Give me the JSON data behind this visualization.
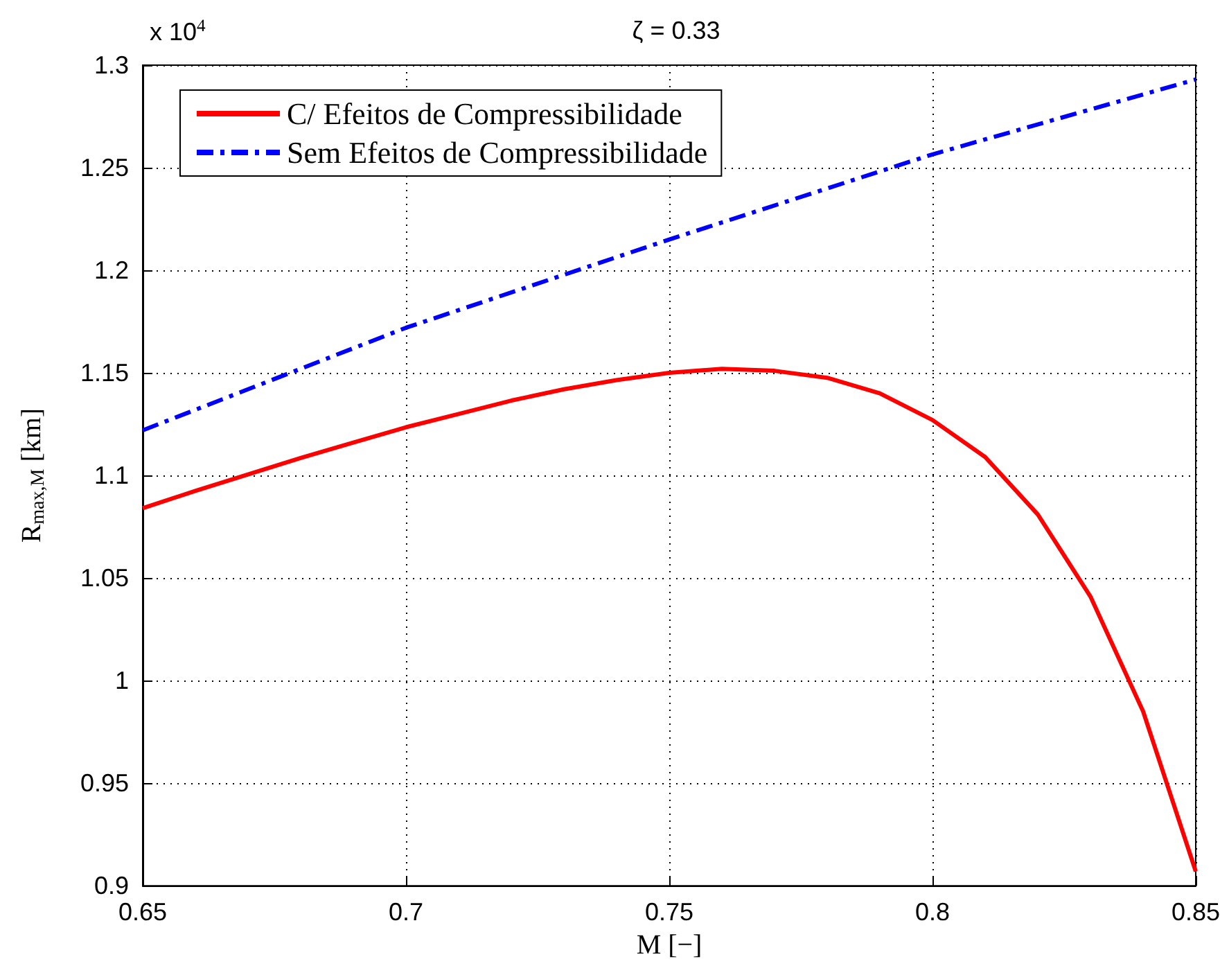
{
  "chart_data": {
    "type": "line",
    "title": "ζ = 0.33",
    "xlabel": "M [−]",
    "ylabel": "R$_{max,M}$ [km]",
    "annotations": [
      "x 10$^{4}$"
    ],
    "x": [
      0.65,
      0.66,
      0.67,
      0.68,
      0.69,
      0.7,
      0.71,
      0.72,
      0.73,
      0.74,
      0.75,
      0.76,
      0.77,
      0.78,
      0.79,
      0.8,
      0.81,
      0.82,
      0.83,
      0.84,
      0.85
    ],
    "series": [
      {
        "name": "C/ Efeitos de Compressibilidade",
        "color": "#ff0000",
        "line_style": "solid",
        "values": [
          1.084,
          1.0925,
          1.1005,
          1.1085,
          1.116,
          1.1235,
          1.13,
          1.1365,
          1.142,
          1.1465,
          1.15,
          1.152,
          1.151,
          1.1476,
          1.14,
          1.127,
          1.109,
          1.081,
          1.041,
          0.985,
          0.907
        ]
      },
      {
        "name": "Sem Efeitos de Compressibilidade",
        "color": "#0000ff",
        "line_style": "dashdot",
        "x": [
          0.65,
          0.7,
          0.75,
          0.8,
          0.85
        ],
        "values": [
          1.122,
          1.172,
          1.215,
          1.2565,
          1.293
        ]
      }
    ],
    "xlim": [
      0.65,
      0.85
    ],
    "xticks": [
      0.65,
      0.7,
      0.75,
      0.8,
      0.85
    ],
    "ylim": [
      0.9,
      1.3
    ],
    "yticks": [
      0.9,
      0.95,
      1,
      1.05,
      1.1,
      1.15,
      1.2,
      1.25,
      1.3
    ],
    "grid": true,
    "legend": "top left",
    "marker": "none"
  }
}
